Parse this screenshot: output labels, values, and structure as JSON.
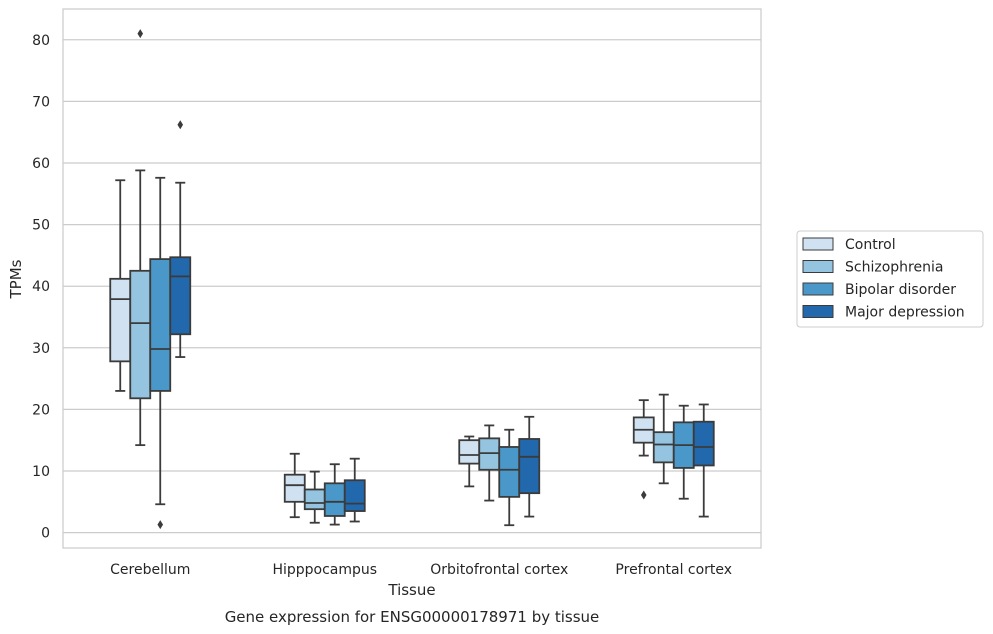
{
  "caption": "Gene expression for ENSG00000178971 by tissue",
  "chart_data": {
    "type": "box",
    "xlabel": "Tissue",
    "ylabel": "TPMs",
    "ylim": [
      -2.5,
      85
    ],
    "yticks": [
      0,
      10,
      20,
      30,
      40,
      50,
      60,
      70,
      80
    ],
    "grid": true,
    "legend_position": "right",
    "categories": [
      "Cerebellum",
      "Hipppocampus",
      "Orbitofrontal cortex",
      "Prefrontal cortex"
    ],
    "series": [
      {
        "name": "Control",
        "color": "#d0e1f2",
        "boxes": [
          {
            "whisker_low": 23,
            "q1": 27.8,
            "median": 37.9,
            "q3": 41.2,
            "whisker_high": 57.2,
            "outliers": []
          },
          {
            "whisker_low": 2.5,
            "q1": 5.0,
            "median": 7.7,
            "q3": 9.4,
            "whisker_high": 12.8,
            "outliers": []
          },
          {
            "whisker_low": 7.5,
            "q1": 11.2,
            "median": 12.6,
            "q3": 15.0,
            "whisker_high": 15.6,
            "outliers": []
          },
          {
            "whisker_low": 12.5,
            "q1": 14.6,
            "median": 16.7,
            "q3": 18.7,
            "whisker_high": 21.5,
            "outliers": [
              6.1
            ]
          }
        ]
      },
      {
        "name": "Schizophrenia",
        "color": "#94c4df",
        "boxes": [
          {
            "whisker_low": 14.2,
            "q1": 21.8,
            "median": 34.0,
            "q3": 42.5,
            "whisker_high": 58.8,
            "outliers": [
              81.0
            ]
          },
          {
            "whisker_low": 1.6,
            "q1": 3.8,
            "median": 4.8,
            "q3": 7.0,
            "whisker_high": 9.9,
            "outliers": []
          },
          {
            "whisker_low": 5.2,
            "q1": 10.2,
            "median": 12.9,
            "q3": 15.3,
            "whisker_high": 17.4,
            "outliers": []
          },
          {
            "whisker_low": 8.0,
            "q1": 11.4,
            "median": 14.3,
            "q3": 16.3,
            "whisker_high": 22.4,
            "outliers": []
          }
        ]
      },
      {
        "name": "Bipolar disorder",
        "color": "#4a98c9",
        "boxes": [
          {
            "whisker_low": 4.6,
            "q1": 23.0,
            "median": 29.8,
            "q3": 44.4,
            "whisker_high": 57.6,
            "outliers": [
              1.3
            ]
          },
          {
            "whisker_low": 1.3,
            "q1": 2.7,
            "median": 5.0,
            "q3": 8.0,
            "whisker_high": 11.1,
            "outliers": []
          },
          {
            "whisker_low": 1.2,
            "q1": 5.8,
            "median": 10.2,
            "q3": 13.9,
            "whisker_high": 16.7,
            "outliers": []
          },
          {
            "whisker_low": 5.5,
            "q1": 10.5,
            "median": 14.2,
            "q3": 17.9,
            "whisker_high": 20.6,
            "outliers": []
          }
        ]
      },
      {
        "name": "Major depression",
        "color": "#2268ad",
        "boxes": [
          {
            "whisker_low": 28.5,
            "q1": 32.2,
            "median": 41.6,
            "q3": 44.7,
            "whisker_high": 56.8,
            "outliers": [
              66.2
            ]
          },
          {
            "whisker_low": 1.8,
            "q1": 3.5,
            "median": 4.7,
            "q3": 8.5,
            "whisker_high": 12.0,
            "outliers": []
          },
          {
            "whisker_low": 2.6,
            "q1": 6.4,
            "median": 12.3,
            "q3": 15.2,
            "whisker_high": 18.8,
            "outliers": []
          },
          {
            "whisker_low": 2.6,
            "q1": 10.9,
            "median": 13.9,
            "q3": 18.0,
            "whisker_high": 20.8,
            "outliers": []
          }
        ]
      }
    ]
  }
}
